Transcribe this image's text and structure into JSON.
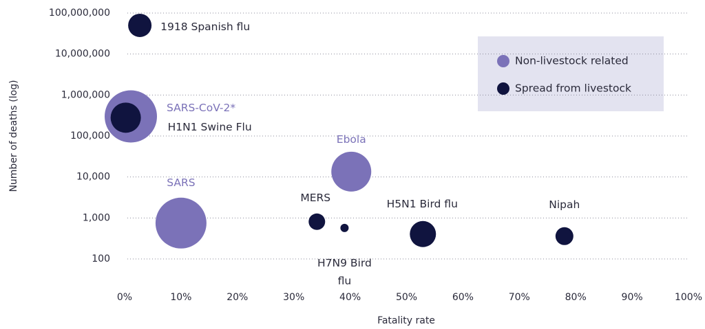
{
  "chart_data": {
    "type": "scatter",
    "x_label": "Fatality rate",
    "y_label": "Number of deaths (log)",
    "xlim": [
      0,
      100
    ],
    "ylim": [
      100,
      100000000
    ],
    "log_y": true,
    "grid": true,
    "legend": "upper right",
    "xticks": [
      {
        "value": 0,
        "label": "0%"
      },
      {
        "value": 10,
        "label": "10%"
      },
      {
        "value": 20,
        "label": "20%"
      },
      {
        "value": 30,
        "label": "30%"
      },
      {
        "value": 40,
        "label": "40%"
      },
      {
        "value": 50,
        "label": "50%"
      },
      {
        "value": 60,
        "label": "60%"
      },
      {
        "value": 70,
        "label": "70%"
      },
      {
        "value": 80,
        "label": "80%"
      },
      {
        "value": 90,
        "label": "90%"
      },
      {
        "value": 100,
        "label": "100%"
      }
    ],
    "yticks": [
      100,
      {
        "value": 1000,
        "label": "1,000"
      },
      {
        "value": 10000,
        "label": "10,000"
      },
      {
        "value": 100000,
        "label": "100,000"
      },
      {
        "value": 1000000,
        "label": "1,000,000"
      },
      {
        "value": 10000000,
        "label": "10,000,000"
      },
      {
        "value": 100000000,
        "label": "100,000,000"
      }
    ],
    "series": [
      {
        "name": "Non-livestock related",
        "color": "#7b72b8",
        "labels": [
          "SARS-CoV-2*",
          "Ebola",
          "SARS"
        ],
        "x": [
          1.1,
          40.2,
          10
        ],
        "values": [
          300000,
          13500,
          750
        ],
        "sizes": [
          38,
          29,
          37
        ]
      },
      {
        "name": "Spread from livestock",
        "color": "#10143f",
        "labels": [
          "1918 Spanish flu",
          "H1N1 Swine Flu",
          "MERS",
          "H7N9 Bird flu",
          "H5N1 Bird flu",
          "Nipah"
        ],
        "x": [
          2.7,
          0.2,
          34.1,
          39,
          52.9,
          78
        ],
        "values": [
          50000000,
          280000,
          810,
          570,
          405,
          360
        ],
        "sizes": [
          17,
          22,
          12,
          6,
          19,
          13
        ]
      }
    ]
  }
}
